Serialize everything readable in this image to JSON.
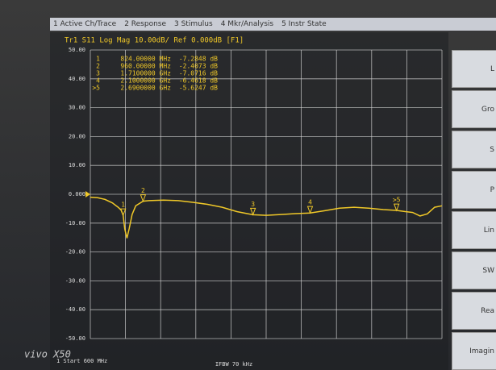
{
  "menu_tabs": [
    "1 Active Ch/Trace",
    "2 Response",
    "3 Stimulus",
    "4 Mkr/Analysis",
    "5 Instr State"
  ],
  "softkeys": [
    "L",
    "Gro",
    "S",
    "P",
    "Lin",
    "SW",
    "Rea",
    "Imagin"
  ],
  "watermark": "vivo X50",
  "chart_data": {
    "type": "line",
    "title": "Tr1 S11 Log Mag 10.00dB/ Ref 0.000dB [F1]",
    "footer_left": "1 Start 600 MHz",
    "footer_center": "IFBW 70 kHz",
    "color": "#f0c828",
    "grid": true,
    "xlim": [
      600,
      3000
    ],
    "xticks": [
      600,
      840,
      1080,
      1320,
      1560,
      1800,
      2040,
      2280,
      2520,
      2760,
      3000
    ],
    "ylim": [
      -50,
      50
    ],
    "yticks": [
      {
        "value": 50,
        "label": "50.00"
      },
      {
        "value": 40,
        "label": "40.00"
      },
      {
        "value": 30,
        "label": "30.00"
      },
      {
        "value": 20,
        "label": "20.00"
      },
      {
        "value": 10,
        "label": "10.00"
      },
      {
        "value": 0,
        "label": "0.000"
      },
      {
        "value": -10,
        "label": "-10.00"
      },
      {
        "value": -20,
        "label": "-20.00"
      },
      {
        "value": -30,
        "label": "-30.00"
      },
      {
        "value": -40,
        "label": "-40.00"
      },
      {
        "value": -50,
        "label": "-50.00"
      }
    ],
    "x": [
      600,
      650,
      700,
      750,
      790,
      810,
      824,
      835,
      850,
      865,
      885,
      910,
      960,
      1000,
      1100,
      1200,
      1300,
      1400,
      1500,
      1600,
      1710,
      1800,
      1900,
      2000,
      2100,
      2200,
      2300,
      2400,
      2500,
      2600,
      2690,
      2750,
      2800,
      2850,
      2900,
      2950,
      3000
    ],
    "values": [
      -1.0,
      -1.2,
      -1.8,
      -3.0,
      -4.5,
      -5.5,
      -7.3,
      -12,
      -15.2,
      -12,
      -7,
      -4,
      -2.4,
      -2.2,
      -2.0,
      -2.2,
      -2.8,
      -3.5,
      -4.5,
      -6.0,
      -7.1,
      -7.3,
      -7.0,
      -6.7,
      -6.5,
      -5.7,
      -4.8,
      -4.5,
      -4.8,
      -5.3,
      -5.6,
      -6.0,
      -6.3,
      -7.5,
      -6.8,
      -4.5,
      -4.0
    ],
    "markers": [
      {
        "number": "1",
        "stimulus": "824.00000 MHz",
        "response": "-7.2848 dB",
        "x": 824,
        "value": -7.2848
      },
      {
        "number": "2",
        "stimulus": "960.00000 MHz",
        "response": "-2.4073 dB",
        "x": 960,
        "value": -2.4073
      },
      {
        "number": "3",
        "stimulus": "1.7100000 GHz",
        "response": "-7.0716 dB",
        "x": 1710,
        "value": -7.0716
      },
      {
        "number": "4",
        "stimulus": "2.1000000 GHz",
        "response": "-6.4618 dB",
        "x": 2100,
        "value": -6.4618
      },
      {
        "number": ">5",
        "stimulus": "2.6900000 GHz",
        "response": "-5.6247 dB",
        "x": 2690,
        "value": -5.6247
      }
    ]
  }
}
